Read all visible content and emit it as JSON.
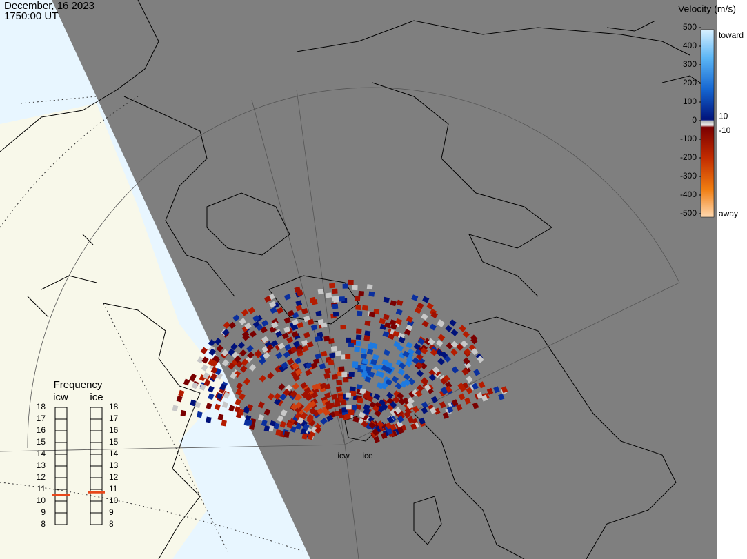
{
  "header": {
    "date": "December, 16 2023",
    "time": "1750:00 UT"
  },
  "velocity_scale": {
    "title": "Velocity (m/s)",
    "ylim": [
      -500,
      500
    ],
    "ticks": [
      500,
      400,
      300,
      200,
      100,
      0,
      -100,
      -200,
      -300,
      -400,
      -500
    ],
    "inner_ticks": [
      10,
      -10
    ],
    "toward": "toward",
    "away": "away"
  },
  "frequency": {
    "title": "Frequency",
    "ylim": [
      8,
      18
    ],
    "ticks": [
      18,
      17,
      16,
      15,
      14,
      13,
      12,
      11,
      10,
      9,
      8
    ],
    "marker_color": "#e8481c",
    "radars": [
      {
        "name": "icw",
        "frequency": 10.5
      },
      {
        "name": "ice",
        "frequency": 10.75
      }
    ]
  },
  "radar_sites": [
    "icw",
    "ice"
  ]
}
